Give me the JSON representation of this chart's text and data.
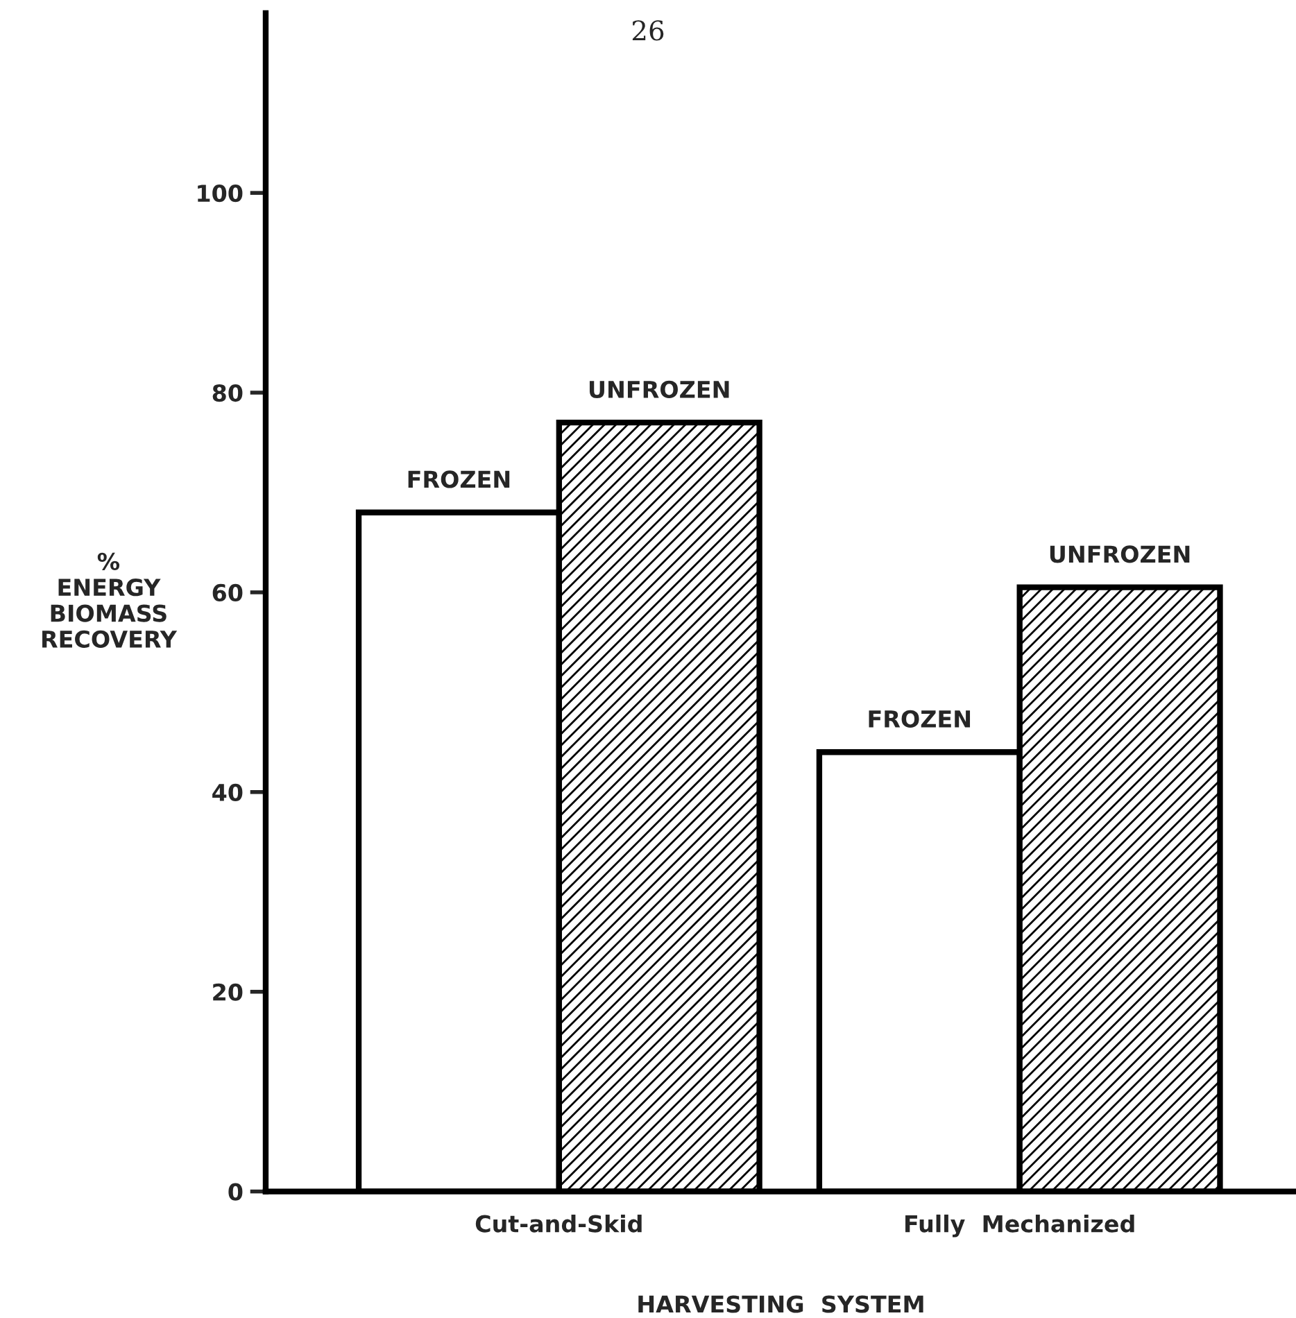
{
  "chart_data": {
    "type": "bar",
    "ylabel": "%\nENERGY\nBIOMASS\nRECOVERY",
    "xlabel": "HARVESTING  SYSTEM",
    "annotations": [
      "26"
    ],
    "categories": [
      "Cut-and-Skid",
      "Fully  Mechanized"
    ],
    "series": [
      {
        "name": "FROZEN",
        "color": "#ffffff",
        "values": [
          68,
          44
        ]
      },
      {
        "name": "UNFROZEN",
        "color": "#000000",
        "values": [
          77,
          60.5
        ]
      }
    ],
    "ylim": [
      0,
      118
    ],
    "yticks": [
      0,
      20,
      40,
      60,
      80,
      100
    ],
    "grid": false,
    "legend": false
  }
}
